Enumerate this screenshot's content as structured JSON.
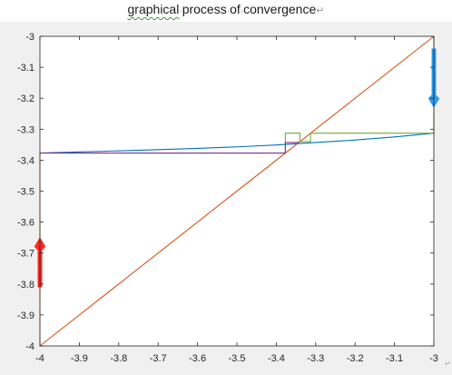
{
  "title": {
    "word1": "graphical",
    "word2": "process",
    "word3": "of",
    "word4": "convergence",
    "return_mark": "↵"
  },
  "colors": {
    "figure_bg": "#f0f0f0",
    "axes_bg": "#ffffff",
    "axis": "#262626",
    "curve": "#0072bd",
    "diagonal": "#d95319",
    "cobweb_right": "#77ac30",
    "cobweb_left": "#7e2f8e",
    "vertical_left": "#edb120",
    "arrow_up": "#ff2a1f",
    "arrow_down": "#2b9cf2"
  },
  "chart_data": {
    "type": "line",
    "title": "graphical process of convergence",
    "xlabel": "",
    "ylabel": "",
    "xlim": [
      -4,
      -3
    ],
    "ylim": [
      -4,
      -3
    ],
    "xticks": [
      -4,
      -3.9,
      -3.8,
      -3.7,
      -3.6,
      -3.5,
      -3.4,
      -3.3,
      -3.2,
      -3.1,
      -3
    ],
    "xtick_labels": [
      "-4",
      "-3.9",
      "-3.8",
      "-3.7",
      "-3.6",
      "-3.5",
      "-3.4",
      "-3.3",
      "-3.2",
      "-3.1",
      "-3"
    ],
    "yticks": [
      -3,
      -3.1,
      -3.2,
      -3.3,
      -3.4,
      -3.5,
      -3.6,
      -3.7,
      -3.8,
      -3.9,
      -4
    ],
    "ytick_labels": [
      "-3",
      "-3.1",
      "-3.2",
      "-3.3",
      "-3.4",
      "-3.5",
      "-3.6",
      "-3.7",
      "-3.8",
      "-3.9",
      "-4"
    ],
    "grid": false,
    "series": [
      {
        "role": "iteration curve",
        "color": "#0072bd",
        "x": [
          -4,
          -3.9,
          -3.8,
          -3.7,
          -3.6,
          -3.5,
          -3.4,
          -3.3,
          -3.2,
          -3.1,
          -3
        ],
        "y": [
          -3.377,
          -3.3735,
          -3.37,
          -3.366,
          -3.362,
          -3.357,
          -3.351,
          -3.343,
          -3.335,
          -3.325,
          -3.313
        ]
      },
      {
        "role": "diagonal y = x",
        "color": "#d95319",
        "x": [
          -4,
          -3
        ],
        "y": [
          -4,
          -3
        ]
      },
      {
        "role": "cobweb from x = -3",
        "color": "#77ac30",
        "x": [
          -3,
          -3,
          -3.313,
          -3.313,
          -3.34,
          -3.34,
          -3.377,
          -3.377
        ],
        "y": [
          -3,
          -3.313,
          -3.313,
          -3.34,
          -3.34,
          -3.313,
          -3.313,
          -3.377
        ]
      },
      {
        "role": "cobweb from x = -4",
        "color": "#7e2f8e",
        "x": [
          -4,
          -3.377,
          -3.377,
          -3.343,
          -3.343
        ],
        "y": [
          -3.377,
          -3.377,
          -3.343,
          -3.343,
          -3.34
        ]
      },
      {
        "role": "start from x = -4",
        "color": "#edb120",
        "x": [
          -4,
          -4
        ],
        "y": [
          -4,
          -3.377
        ]
      }
    ],
    "annotations": [
      {
        "type": "arrow",
        "direction": "up",
        "color": "#ff2a1f",
        "x": -4,
        "y_from": -3.81,
        "y_to": -3.65
      },
      {
        "type": "arrow",
        "direction": "down",
        "color": "#2b9cf2",
        "x": -3,
        "y_from": -3.04,
        "y_to": -3.23
      }
    ]
  },
  "footer": {
    "corner_mark": "↵"
  }
}
